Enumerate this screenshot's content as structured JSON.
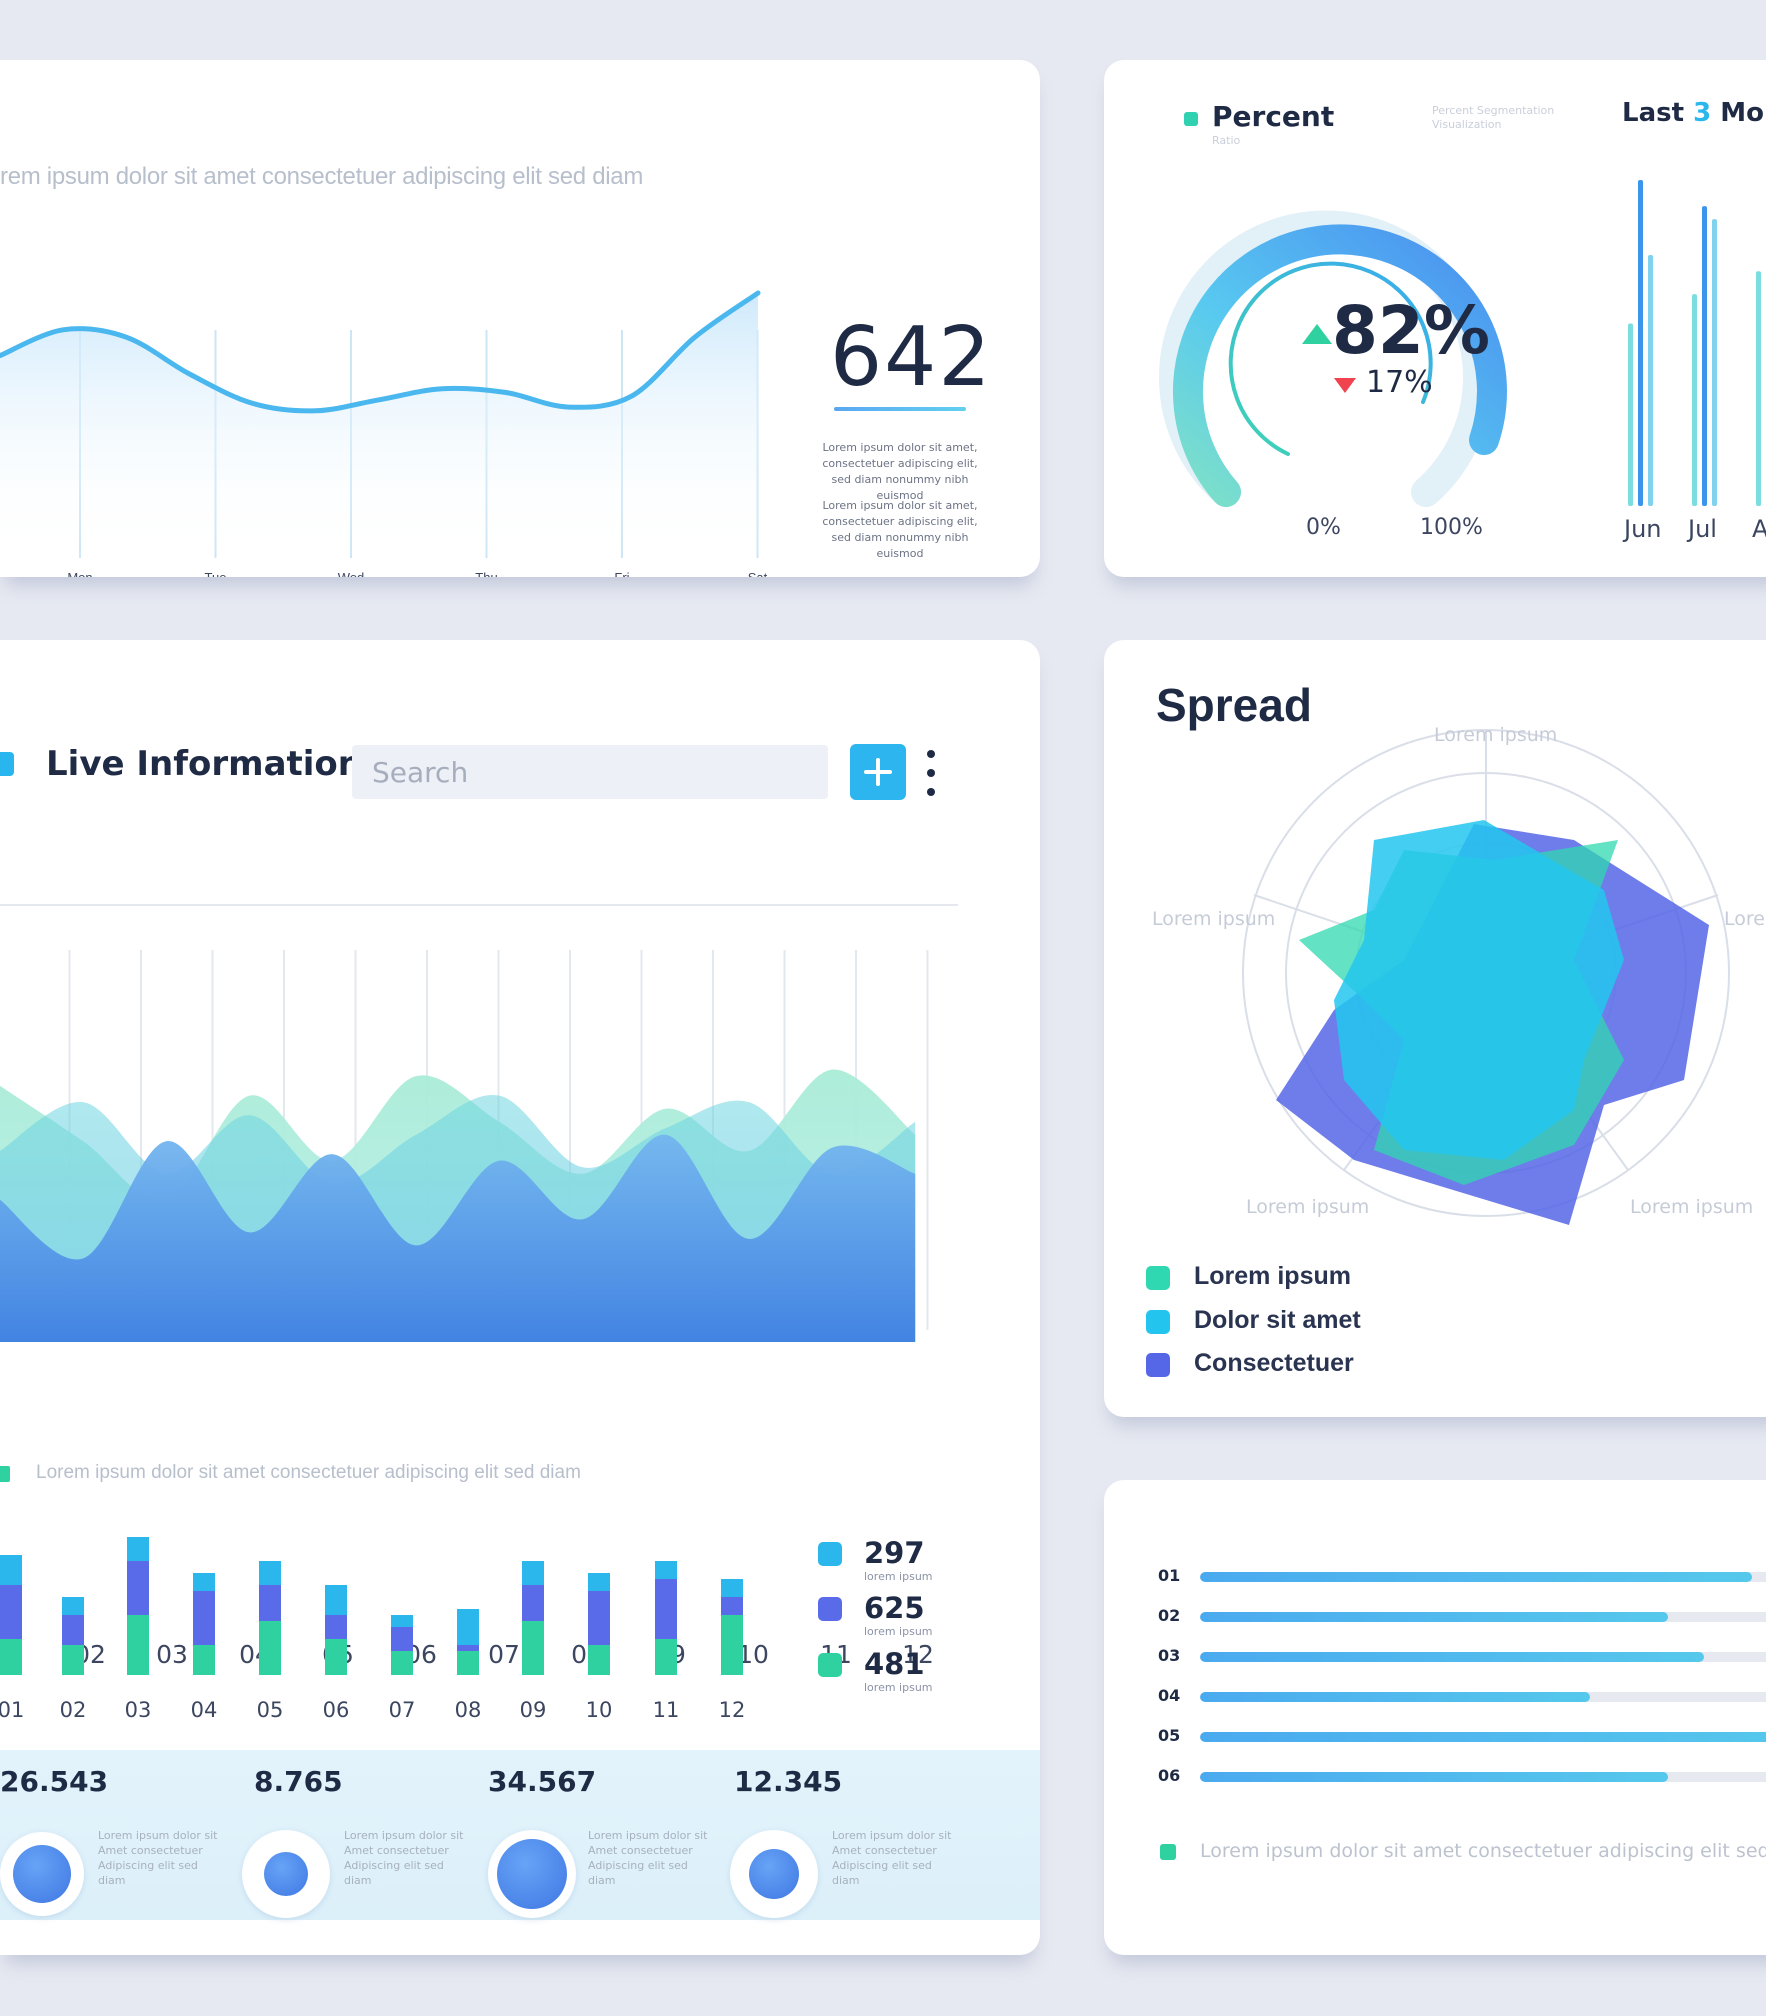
{
  "week_card": {
    "caption": "rem ipsum dolor sit amet consectetuer adipiscing elit sed diam",
    "value": "642",
    "desc_1": "Lorem ipsum dolor sit amet, consectetuer adipiscing elit, sed diam nonummy nibh euismod",
    "desc_2": "Lorem ipsum dolor sit amet, consectetuer adipiscing elit, sed diam nonummy nibh euismod",
    "chart_data": {
      "type": "area",
      "categories": [
        "Mon",
        "Tue",
        "Wed",
        "Thu",
        "Fri",
        "Sat"
      ],
      "x": [
        0,
        1,
        2,
        3,
        4,
        5,
        6,
        7,
        8,
        9,
        10,
        11,
        12
      ],
      "values": [
        55,
        62,
        60,
        50,
        42,
        40,
        43,
        46,
        45,
        41,
        44,
        60,
        72
      ],
      "ylim": [
        0,
        100
      ]
    }
  },
  "percent_card": {
    "title": "Percent",
    "subtitle": "Ratio",
    "note": "Percent Segmentation Visualization",
    "period_prefix": "Last ",
    "period_num": "3",
    "period_suffix": " Mont",
    "big_value": "82%",
    "small_value": "17%",
    "axis_min": "0%",
    "axis_max": "100%",
    "colors": {
      "up": "#2fd1a0",
      "down": "#f0434f",
      "accent": "#2bb7ec"
    },
    "chart_data": {
      "type": "bar",
      "categories": [
        "Jun",
        "Jul",
        "Au"
      ],
      "series": [
        {
          "values": [
            56,
            65,
            72
          ]
        },
        {
          "values": [
            100,
            92,
            95
          ]
        },
        {
          "values": [
            77,
            88,
            58
          ]
        }
      ],
      "ylim": [
        0,
        100
      ]
    }
  },
  "live_card": {
    "title": "Live Information",
    "search_placeholder": "Search",
    "add_icon": "plus-icon",
    "more_icon": "more-vertical-icon",
    "legend_text": "Lorem ipsum dolor sit amet consectetuer adipiscing elit sed diam",
    "wave_chart": {
      "type": "area",
      "categories": [
        "01",
        "02",
        "03",
        "04",
        "05",
        "06",
        "07",
        "08",
        "09",
        "10",
        "11",
        "12"
      ],
      "series": [
        {
          "values": [
            75,
            58,
            40,
            72,
            52,
            78,
            64,
            48,
            68,
            55,
            80,
            60
          ]
        },
        {
          "values": [
            55,
            70,
            48,
            66,
            45,
            60,
            72,
            50,
            62,
            70,
            48,
            64
          ]
        },
        {
          "values": [
            40,
            22,
            58,
            30,
            54,
            26,
            52,
            34,
            60,
            28,
            56,
            48
          ]
        }
      ],
      "ylim": [
        0,
        100
      ]
    },
    "bar_chart": {
      "type": "bar",
      "categories": [
        "01",
        "02",
        "03",
        "04",
        "05",
        "06",
        "07",
        "08",
        "09",
        "10",
        "11",
        "12"
      ],
      "series": [
        {
          "name": "297",
          "values": [
            5,
            3,
            4,
            3,
            4,
            5,
            2,
            6,
            4,
            3,
            3,
            3
          ]
        },
        {
          "name": "625",
          "values": [
            9,
            5,
            9,
            9,
            6,
            4,
            4,
            1,
            6,
            9,
            10,
            3
          ]
        },
        {
          "name": "481",
          "values": [
            6,
            5,
            10,
            5,
            9,
            6,
            4,
            4,
            9,
            5,
            6,
            10
          ]
        }
      ],
      "ylim": [
        0,
        22
      ]
    },
    "stats": [
      {
        "value": "297",
        "label": "lorem ipsum",
        "color": "#2bb7ec"
      },
      {
        "value": "625",
        "label": "lorem ipsum",
        "color": "#5a6bea"
      },
      {
        "value": "481",
        "label": "lorem ipsum",
        "color": "#2fd1a0"
      }
    ],
    "kpis": [
      {
        "value": "26.543",
        "desc": "Lorem ipsum dolor sit Amet consectetuer Adipiscing elit sed diam"
      },
      {
        "value": "8.765",
        "desc": "Lorem ipsum dolor sit Amet consectetuer Adipiscing elit sed diam"
      },
      {
        "value": "34.567",
        "desc": "Lorem ipsum dolor sit Amet consectetuer Adipiscing elit sed diam"
      },
      {
        "value": "12.345",
        "desc": "Lorem ipsum dolor sit Amet consectetuer Adipiscing elit sed diam"
      }
    ]
  },
  "spread_card": {
    "title": "Spread",
    "axis_labels": [
      "Lorem ipsum",
      "Lorem ipsum",
      "Lorem",
      "Lorem ipsum",
      "Lorem ipsum"
    ],
    "legend": [
      {
        "label": "Lorem ipsum",
        "color": "#2fd8b0"
      },
      {
        "label": "Dolor sit amet",
        "color": "#23c5ef"
      },
      {
        "label": "Consectetuer",
        "color": "#5566e6"
      }
    ]
  },
  "hbar_card": {
    "legend_text": "Lorem ipsum dolor sit amet consectetuer adipiscing elit sed diam",
    "chart_data": {
      "type": "bar",
      "categories": [
        "01",
        "02",
        "03",
        "04",
        "05",
        "06"
      ],
      "values": [
        92,
        78,
        84,
        65,
        100,
        78
      ],
      "xlim": [
        0,
        100
      ]
    }
  }
}
